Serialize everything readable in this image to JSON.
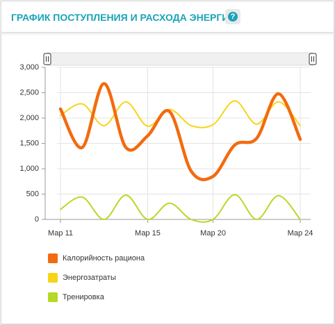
{
  "header": {
    "title": "ГРАФИК ПОСТУПЛЕНИЯ И РАСХОДА ЭНЕРГИИ"
  },
  "chart_data": {
    "type": "line",
    "categories": [
      "Мар 11",
      null,
      null,
      null,
      "Мар 15",
      null,
      null,
      "Мар 20",
      null,
      null,
      null,
      "Мар 24"
    ],
    "series": [
      {
        "name": "Калорийность рациона",
        "color": "#f26b0f",
        "values": [
          2180,
          1420,
          2680,
          1420,
          1650,
          2130,
          950,
          850,
          1470,
          1600,
          2480,
          1580
        ]
      },
      {
        "name": "Энергозатраты",
        "color": "#f7d417",
        "values": [
          2050,
          2280,
          1850,
          2320,
          1840,
          2170,
          1850,
          1870,
          2340,
          1880,
          2320,
          1850
        ]
      },
      {
        "name": "Тренировка",
        "color": "#b6d826",
        "values": [
          200,
          440,
          0,
          480,
          0,
          320,
          0,
          0,
          490,
          0,
          470,
          0
        ]
      }
    ],
    "ylim": [
      0,
      3000
    ],
    "yticks": [
      0,
      500,
      {
        "value": 1000,
        "label": "1,000"
      },
      {
        "value": 1500,
        "label": "1,500"
      },
      {
        "value": 2000,
        "label": "2,000"
      },
      {
        "value": 2500,
        "label": "2,500"
      },
      {
        "value": 3000,
        "label": "3,000"
      }
    ],
    "grid": true
  }
}
